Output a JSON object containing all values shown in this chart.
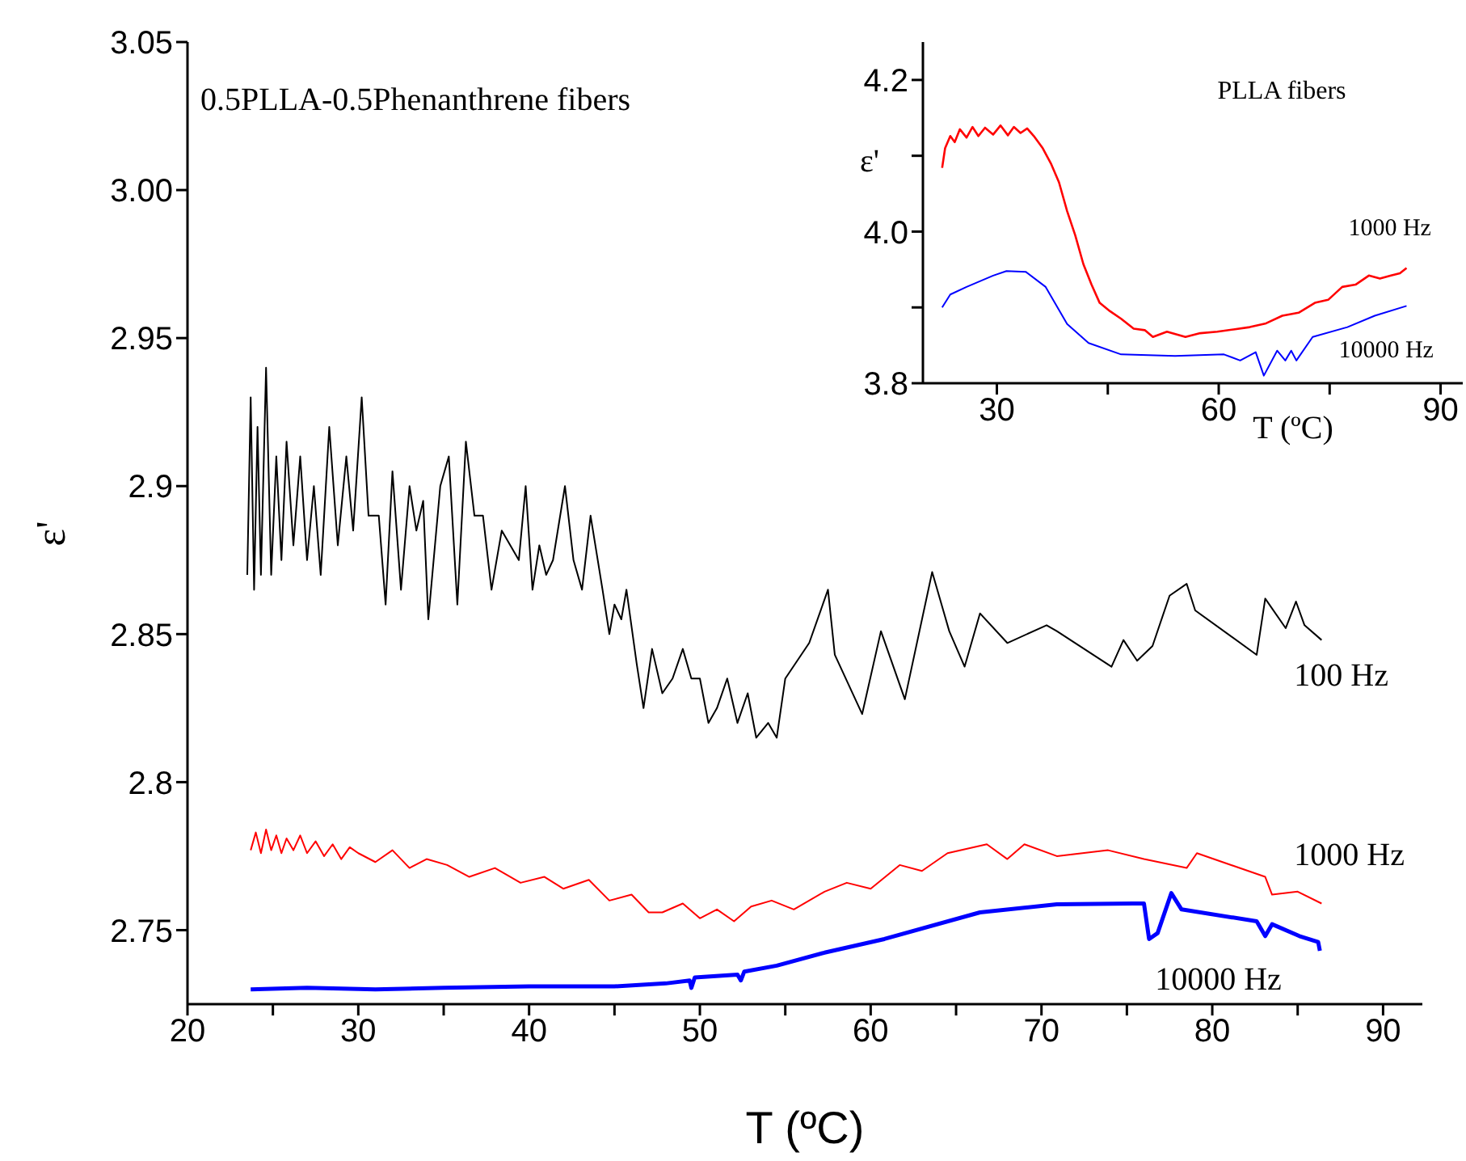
{
  "chart_data": [
    {
      "type": "line",
      "title": "0.5PLLA-0.5Phenanthrene fibers",
      "xlabel": "T (ºC)",
      "ylabel": "ε'",
      "xlim": [
        20,
        92.3
      ],
      "xticks": [
        20,
        {
          "value": 25,
          "label": null
        },
        30,
        {
          "value": 35,
          "label": null
        },
        40,
        {
          "value": 45,
          "label": null
        },
        50,
        {
          "value": 55,
          "label": null
        },
        60,
        {
          "value": 65,
          "label": null
        },
        70,
        {
          "value": 75,
          "label": null
        },
        80,
        {
          "value": 85,
          "label": null
        },
        90
      ],
      "ylim": [
        2.725,
        3.05
      ],
      "yticks": [
        2.75,
        2.8,
        2.85,
        2.9,
        2.95,
        {
          "value": 3,
          "label": "3.00"
        },
        3.05
      ],
      "marker": "none",
      "line_style": "solid",
      "series": [
        {
          "name": "100 Hz",
          "color": "#000000",
          "x": [
            23.5,
            23.7,
            23.9,
            24.1,
            24.3,
            24.6,
            24.9,
            25.2,
            25.5,
            25.8,
            26.2,
            26.6,
            27.0,
            27.4,
            27.8,
            28.3,
            28.8,
            29.3,
            29.7,
            30.2,
            30.6,
            31.2,
            31.6,
            32.0,
            32.5,
            33.0,
            33.4,
            33.8,
            34.1,
            34.8,
            35.3,
            35.8,
            36.3,
            36.8,
            37.3,
            37.8,
            38.4,
            38.9,
            39.4,
            39.8,
            40.2,
            40.6,
            41.0,
            41.4,
            42.1,
            42.6,
            43.1,
            43.6,
            44.3,
            44.7,
            45.0,
            45.4,
            45.7,
            46.3,
            46.7,
            47.2,
            47.8,
            48.4,
            49.0,
            49.5,
            50.0,
            50.5,
            51.0,
            51.6,
            52.2,
            52.8,
            53.3,
            54.0,
            54.5,
            55.0,
            56.4,
            57.5,
            57.9,
            59.5,
            60.6,
            62.0,
            63.6,
            64.6,
            65.5,
            66.4,
            68.0,
            70.3,
            70.9,
            74.1,
            74.8,
            75.6,
            76.5,
            77.5,
            78.5,
            79.0,
            82.6,
            83.1,
            84.3,
            84.9,
            85.4,
            86.4
          ],
          "values": [
            2.87,
            2.93,
            2.865,
            2.92,
            2.87,
            2.94,
            2.87,
            2.91,
            2.875,
            2.915,
            2.88,
            2.91,
            2.875,
            2.9,
            2.87,
            2.92,
            2.88,
            2.91,
            2.885,
            2.93,
            2.89,
            2.89,
            2.86,
            2.905,
            2.865,
            2.9,
            2.885,
            2.895,
            2.855,
            2.9,
            2.91,
            2.86,
            2.915,
            2.89,
            2.89,
            2.865,
            2.885,
            2.88,
            2.875,
            2.9,
            2.865,
            2.88,
            2.87,
            2.875,
            2.9,
            2.875,
            2.865,
            2.89,
            2.865,
            2.85,
            2.86,
            2.855,
            2.865,
            2.84,
            2.825,
            2.845,
            2.83,
            2.835,
            2.845,
            2.835,
            2.835,
            2.82,
            2.825,
            2.835,
            2.82,
            2.83,
            2.815,
            2.82,
            2.815,
            2.835,
            2.847,
            2.865,
            2.843,
            2.823,
            2.851,
            2.828,
            2.871,
            2.851,
            2.839,
            2.857,
            2.847,
            2.853,
            2.851,
            2.839,
            2.848,
            2.841,
            2.846,
            2.863,
            2.867,
            2.858,
            2.843,
            2.862,
            2.852,
            2.861,
            2.853,
            2.848
          ]
        },
        {
          "name": "1000 Hz",
          "color": "#ff0000",
          "x": [
            23.7,
            24.0,
            24.3,
            24.6,
            24.9,
            25.2,
            25.5,
            25.8,
            26.2,
            26.6,
            27.0,
            27.5,
            28.0,
            28.5,
            29.0,
            29.5,
            30.0,
            31,
            32,
            33,
            34,
            35.2,
            36.5,
            38,
            39.5,
            40.9,
            42,
            43.5,
            44.7,
            46,
            47,
            47.8,
            49,
            50,
            51,
            52,
            53,
            54.2,
            55.5,
            57.3,
            58.6,
            60,
            61.7,
            63,
            64.5,
            66.8,
            68,
            69,
            70.9,
            73.9,
            76.0,
            78.5,
            79.1,
            83.1,
            83.5,
            85,
            86.4
          ],
          "values": [
            2.777,
            2.783,
            2.776,
            2.784,
            2.777,
            2.782,
            2.776,
            2.781,
            2.777,
            2.782,
            2.776,
            2.78,
            2.775,
            2.779,
            2.774,
            2.778,
            2.776,
            2.773,
            2.777,
            2.771,
            2.774,
            2.772,
            2.768,
            2.771,
            2.766,
            2.768,
            2.764,
            2.767,
            2.76,
            2.762,
            2.756,
            2.756,
            2.759,
            2.754,
            2.757,
            2.753,
            2.758,
            2.76,
            2.757,
            2.763,
            2.766,
            2.764,
            2.772,
            2.77,
            2.776,
            2.779,
            2.774,
            2.779,
            2.775,
            2.777,
            2.774,
            2.771,
            2.776,
            2.768,
            2.762,
            2.763,
            2.759
          ]
        },
        {
          "name": "10000 Hz",
          "color": "#0000ff",
          "x": [
            23.7,
            27,
            31,
            35,
            40,
            45,
            48,
            49.4,
            49.5,
            49.7,
            52.2,
            52.4,
            52.6,
            54.5,
            57.3,
            60.8,
            66.4,
            70.9,
            75.4,
            76.0,
            76.3,
            76.8,
            77.6,
            78.2,
            82.6,
            83.1,
            83.5,
            85.1,
            86.2,
            86.3
          ],
          "values": [
            2.73,
            2.7305,
            2.73,
            2.7305,
            2.731,
            2.731,
            2.732,
            2.733,
            2.7305,
            2.734,
            2.735,
            2.733,
            2.736,
            2.738,
            2.7424,
            2.747,
            2.756,
            2.7587,
            2.759,
            2.759,
            2.747,
            2.749,
            2.7625,
            2.757,
            2.753,
            2.748,
            2.752,
            2.748,
            2.746,
            2.743
          ]
        }
      ]
    },
    {
      "type": "line",
      "title": "PLLA fibers",
      "xlabel": "T (ºC)",
      "ylabel": "ε'",
      "xlim": [
        20,
        93
      ],
      "xticks": [
        30,
        {
          "value": 45,
          "label": null
        },
        60,
        {
          "value": 75,
          "label": null
        },
        90
      ],
      "ylim": [
        3.8,
        4.25
      ],
      "yticks": [
        3.8,
        {
          "value": 3.9,
          "label": null
        },
        {
          "value": 4,
          "label": "4.0"
        },
        {
          "value": 4.1,
          "label": null
        },
        4.2
      ],
      "marker": "none",
      "line_style": "solid",
      "series": [
        {
          "name": "1000 Hz",
          "color": "#ff0000",
          "x": [
            22.6,
            23.0,
            23.7,
            24.3,
            25.0,
            25.9,
            26.7,
            27.5,
            28.4,
            29.5,
            30.5,
            31.5,
            32.3,
            33.2,
            34.1,
            35,
            36.2,
            37.3,
            38.4,
            39.5,
            40.6,
            41.7,
            42.8,
            43.9,
            45.3,
            46.8,
            48.5,
            50,
            51.1,
            53,
            55.5,
            57.5,
            59.8,
            62,
            64.2,
            66.4,
            68.6,
            70.8,
            73,
            74.8,
            76.7,
            78.5,
            80.3,
            81.8,
            83.3,
            84.5,
            85.4
          ],
          "values": [
            4.084,
            4.11,
            4.126,
            4.118,
            4.135,
            4.124,
            4.138,
            4.126,
            4.137,
            4.128,
            4.14,
            4.127,
            4.138,
            4.13,
            4.136,
            4.126,
            4.11,
            4.09,
            4.065,
            4.027,
            3.995,
            3.957,
            3.93,
            3.906,
            3.895,
            3.885,
            3.872,
            3.87,
            3.861,
            3.868,
            3.861,
            3.866,
            3.868,
            3.871,
            3.874,
            3.879,
            3.889,
            3.893,
            3.906,
            3.91,
            3.927,
            3.93,
            3.942,
            3.938,
            3.942,
            3.945,
            3.952
          ]
        },
        {
          "name": "10000 Hz",
          "color": "#0000ff",
          "x": [
            22.6,
            23.7,
            25.9,
            29.5,
            31.3,
            33.9,
            36.6,
            39.5,
            42.4,
            46.8,
            54.1,
            60.7,
            62.9,
            65,
            66.1,
            67.9,
            69,
            69.8,
            70.5,
            72.7,
            77.4,
            81.1,
            85.4
          ],
          "values": [
            3.9,
            3.917,
            3.927,
            3.942,
            3.948,
            3.947,
            3.927,
            3.878,
            3.853,
            3.838,
            3.836,
            3.838,
            3.83,
            3.841,
            3.81,
            3.843,
            3.83,
            3.843,
            3.83,
            3.861,
            3.874,
            3.889,
            3.902
          ]
        }
      ]
    }
  ]
}
